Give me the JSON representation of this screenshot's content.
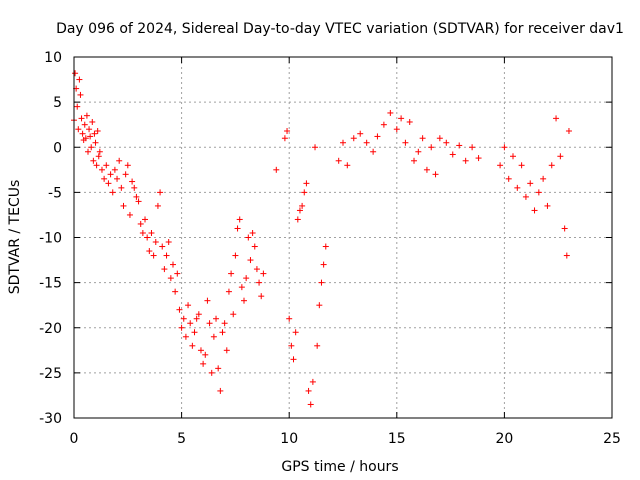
{
  "chart_data": {
    "type": "scatter",
    "title": "Day 096 of 2024, Sidereal Day-to-day VTEC variation (SDTVAR) for receiver dav1",
    "xlabel": "GPS time / hours",
    "ylabel": "SDTVAR / TECUs",
    "xlim": [
      0,
      25
    ],
    "ylim": [
      -30,
      10
    ],
    "xticks": [
      "0",
      "5",
      "10",
      "15",
      "20",
      "25"
    ],
    "yticks": [
      "10",
      "5",
      "0",
      "-5",
      "-10",
      "-15",
      "-20",
      "-25",
      "-30"
    ],
    "grid": true,
    "marker": "+",
    "color": "#ff0000",
    "series": [
      {
        "name": "SDTVAR",
        "points": [
          [
            0.0,
            3.0
          ],
          [
            0.05,
            8.2
          ],
          [
            0.1,
            6.5
          ],
          [
            0.15,
            4.5
          ],
          [
            0.2,
            2.0
          ],
          [
            0.25,
            7.5
          ],
          [
            0.3,
            5.8
          ],
          [
            0.35,
            3.2
          ],
          [
            0.4,
            1.5
          ],
          [
            0.45,
            0.8
          ],
          [
            0.5,
            2.5
          ],
          [
            0.55,
            1.0
          ],
          [
            0.6,
            3.5
          ],
          [
            0.65,
            -0.5
          ],
          [
            0.7,
            2.0
          ],
          [
            0.75,
            1.2
          ],
          [
            0.8,
            0.0
          ],
          [
            0.85,
            2.8
          ],
          [
            0.9,
            -1.5
          ],
          [
            0.95,
            1.5
          ],
          [
            1.0,
            0.5
          ],
          [
            1.05,
            -2.0
          ],
          [
            1.1,
            1.8
          ],
          [
            1.15,
            -1.0
          ],
          [
            1.2,
            -0.5
          ],
          [
            1.3,
            -2.5
          ],
          [
            1.4,
            -3.5
          ],
          [
            1.5,
            -2.0
          ],
          [
            1.6,
            -4.0
          ],
          [
            1.7,
            -3.0
          ],
          [
            1.8,
            -5.0
          ],
          [
            1.9,
            -2.5
          ],
          [
            2.0,
            -3.5
          ],
          [
            2.1,
            -1.5
          ],
          [
            2.2,
            -4.5
          ],
          [
            2.3,
            -6.5
          ],
          [
            2.4,
            -3.0
          ],
          [
            2.5,
            -2.0
          ],
          [
            2.6,
            -7.5
          ],
          [
            2.7,
            -3.8
          ],
          [
            2.8,
            -4.5
          ],
          [
            2.9,
            -5.5
          ],
          [
            3.0,
            -6.0
          ],
          [
            3.1,
            -8.5
          ],
          [
            3.2,
            -9.5
          ],
          [
            3.3,
            -8.0
          ],
          [
            3.4,
            -10.0
          ],
          [
            3.5,
            -11.5
          ],
          [
            3.6,
            -9.5
          ],
          [
            3.7,
            -12.0
          ],
          [
            3.8,
            -10.5
          ],
          [
            3.9,
            -6.5
          ],
          [
            4.0,
            -5.0
          ],
          [
            4.1,
            -11.0
          ],
          [
            4.2,
            -13.5
          ],
          [
            4.3,
            -12.0
          ],
          [
            4.4,
            -10.5
          ],
          [
            4.5,
            -14.5
          ],
          [
            4.6,
            -13.0
          ],
          [
            4.7,
            -16.0
          ],
          [
            4.8,
            -14.0
          ],
          [
            4.9,
            -18.0
          ],
          [
            5.0,
            -20.0
          ],
          [
            5.1,
            -19.0
          ],
          [
            5.2,
            -21.0
          ],
          [
            5.3,
            -17.5
          ],
          [
            5.4,
            -19.5
          ],
          [
            5.5,
            -22.0
          ],
          [
            5.6,
            -20.5
          ],
          [
            5.7,
            -19.0
          ],
          [
            5.8,
            -18.5
          ],
          [
            5.9,
            -22.5
          ],
          [
            6.0,
            -24.0
          ],
          [
            6.1,
            -23.0
          ],
          [
            6.2,
            -17.0
          ],
          [
            6.3,
            -19.5
          ],
          [
            6.4,
            -25.0
          ],
          [
            6.5,
            -21.0
          ],
          [
            6.6,
            -19.0
          ],
          [
            6.7,
            -24.5
          ],
          [
            6.8,
            -27.0
          ],
          [
            6.9,
            -20.5
          ],
          [
            7.0,
            -19.5
          ],
          [
            7.1,
            -22.5
          ],
          [
            7.2,
            -16.0
          ],
          [
            7.3,
            -14.0
          ],
          [
            7.4,
            -18.5
          ],
          [
            7.5,
            -12.0
          ],
          [
            7.6,
            -9.0
          ],
          [
            7.7,
            -8.0
          ],
          [
            7.8,
            -15.5
          ],
          [
            7.9,
            -17.0
          ],
          [
            8.0,
            -14.5
          ],
          [
            8.1,
            -10.0
          ],
          [
            8.2,
            -12.5
          ],
          [
            8.3,
            -9.5
          ],
          [
            8.4,
            -11.0
          ],
          [
            8.5,
            -13.5
          ],
          [
            8.6,
            -15.0
          ],
          [
            8.7,
            -16.5
          ],
          [
            8.8,
            -14.0
          ],
          [
            9.4,
            -2.5
          ],
          [
            9.8,
            1.0
          ],
          [
            9.9,
            1.8
          ],
          [
            10.0,
            -19.0
          ],
          [
            10.1,
            -22.0
          ],
          [
            10.2,
            -23.5
          ],
          [
            10.3,
            -20.5
          ],
          [
            10.4,
            -8.0
          ],
          [
            10.5,
            -7.0
          ],
          [
            10.6,
            -6.5
          ],
          [
            10.7,
            -5.0
          ],
          [
            10.8,
            -4.0
          ],
          [
            10.9,
            -27.0
          ],
          [
            11.0,
            -28.5
          ],
          [
            11.1,
            -26.0
          ],
          [
            11.2,
            0.0
          ],
          [
            11.3,
            -22.0
          ],
          [
            11.4,
            -17.5
          ],
          [
            11.5,
            -15.0
          ],
          [
            11.6,
            -13.0
          ],
          [
            11.7,
            -11.0
          ],
          [
            12.3,
            -1.5
          ],
          [
            12.5,
            0.5
          ],
          [
            12.7,
            -2.0
          ],
          [
            13.0,
            1.0
          ],
          [
            13.3,
            1.5
          ],
          [
            13.6,
            0.5
          ],
          [
            13.9,
            -0.5
          ],
          [
            14.1,
            1.2
          ],
          [
            14.4,
            2.5
          ],
          [
            14.7,
            3.8
          ],
          [
            15.0,
            2.0
          ],
          [
            15.2,
            3.2
          ],
          [
            15.4,
            0.5
          ],
          [
            15.6,
            2.8
          ],
          [
            15.8,
            -1.5
          ],
          [
            16.0,
            -0.5
          ],
          [
            16.2,
            1.0
          ],
          [
            16.4,
            -2.5
          ],
          [
            16.6,
            0.0
          ],
          [
            16.8,
            -3.0
          ],
          [
            17.0,
            1.0
          ],
          [
            17.3,
            0.5
          ],
          [
            17.6,
            -0.8
          ],
          [
            17.9,
            0.2
          ],
          [
            18.2,
            -1.5
          ],
          [
            18.5,
            0.0
          ],
          [
            18.8,
            -1.2
          ],
          [
            19.8,
            -2.0
          ],
          [
            20.0,
            0.0
          ],
          [
            20.2,
            -3.5
          ],
          [
            20.4,
            -1.0
          ],
          [
            20.6,
            -4.5
          ],
          [
            20.8,
            -2.0
          ],
          [
            21.0,
            -5.5
          ],
          [
            21.2,
            -4.0
          ],
          [
            21.4,
            -7.0
          ],
          [
            21.6,
            -5.0
          ],
          [
            21.8,
            -3.5
          ],
          [
            22.0,
            -6.5
          ],
          [
            22.2,
            -2.0
          ],
          [
            22.4,
            3.2
          ],
          [
            22.6,
            -1.0
          ],
          [
            22.8,
            -9.0
          ],
          [
            22.9,
            -12.0
          ],
          [
            23.0,
            1.8
          ]
        ]
      }
    ]
  }
}
